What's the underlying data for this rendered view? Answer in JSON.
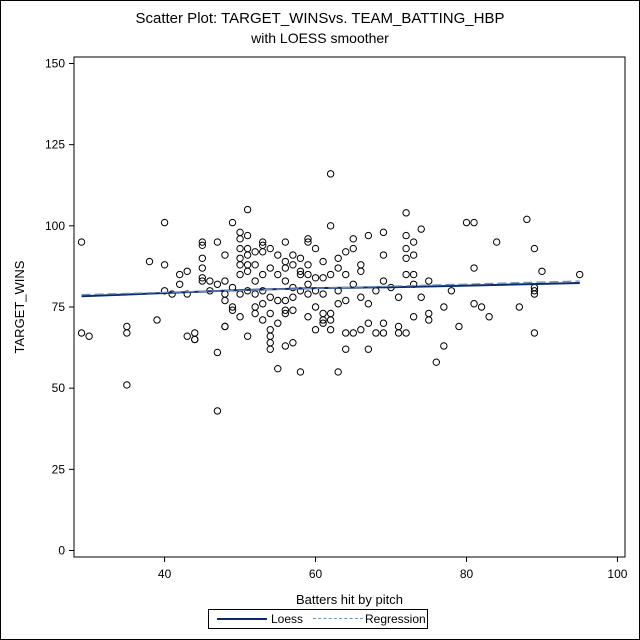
{
  "colors": {
    "loess": "#0b2a6b",
    "regression": "#6f8fb8",
    "marker": "#000000"
  },
  "chart_data": {
    "type": "scatter",
    "title": "Scatter Plot: TARGET_WINSvs. TEAM_BATTING_HBP",
    "subtitle": "with LOESS smoother",
    "xlabel": "Batters hit by pitch",
    "ylabel": "TARGET_WINS",
    "xlim": [
      28,
      101
    ],
    "ylim": [
      -2,
      152
    ],
    "xticks": [
      40,
      60,
      80,
      100
    ],
    "yticks": [
      0,
      25,
      50,
      75,
      100,
      125,
      150
    ],
    "grid": false,
    "legend_position": "bottom",
    "points": [
      [
        29,
        95
      ],
      [
        29,
        67
      ],
      [
        30,
        66
      ],
      [
        35,
        69
      ],
      [
        35,
        67
      ],
      [
        35,
        51
      ],
      [
        38,
        89
      ],
      [
        39,
        71
      ],
      [
        40,
        101
      ],
      [
        40,
        88
      ],
      [
        40,
        80
      ],
      [
        41,
        79
      ],
      [
        42,
        85
      ],
      [
        42,
        82
      ],
      [
        43,
        86
      ],
      [
        43,
        79
      ],
      [
        43,
        66
      ],
      [
        44,
        67
      ],
      [
        44,
        65
      ],
      [
        44,
        65
      ],
      [
        45,
        95
      ],
      [
        45,
        94
      ],
      [
        45,
        90
      ],
      [
        45,
        87
      ],
      [
        45,
        84
      ],
      [
        45,
        83
      ],
      [
        46,
        83
      ],
      [
        46,
        80
      ],
      [
        47,
        95
      ],
      [
        47,
        82
      ],
      [
        47,
        61
      ],
      [
        47,
        43
      ],
      [
        48,
        91
      ],
      [
        48,
        83
      ],
      [
        48,
        79
      ],
      [
        48,
        77
      ],
      [
        48,
        69
      ],
      [
        48,
        69
      ],
      [
        49,
        101
      ],
      [
        49,
        81
      ],
      [
        49,
        75
      ],
      [
        49,
        74
      ],
      [
        50,
        98
      ],
      [
        50,
        96
      ],
      [
        50,
        93
      ],
      [
        50,
        90
      ],
      [
        50,
        88
      ],
      [
        50,
        85
      ],
      [
        50,
        79
      ],
      [
        50,
        72
      ],
      [
        51,
        105
      ],
      [
        51,
        97
      ],
      [
        51,
        93
      ],
      [
        51,
        91
      ],
      [
        51,
        88
      ],
      [
        51,
        86
      ],
      [
        51,
        80
      ],
      [
        51,
        66
      ],
      [
        52,
        92
      ],
      [
        52,
        88
      ],
      [
        52,
        83
      ],
      [
        52,
        79
      ],
      [
        52,
        75
      ],
      [
        52,
        73
      ],
      [
        53,
        95
      ],
      [
        53,
        94
      ],
      [
        53,
        92
      ],
      [
        53,
        85
      ],
      [
        53,
        80
      ],
      [
        53,
        76
      ],
      [
        53,
        71
      ],
      [
        54,
        93
      ],
      [
        54,
        87
      ],
      [
        54,
        78
      ],
      [
        54,
        73
      ],
      [
        54,
        68
      ],
      [
        54,
        66
      ],
      [
        54,
        64
      ],
      [
        54,
        62
      ],
      [
        55,
        91
      ],
      [
        55,
        85
      ],
      [
        55,
        77
      ],
      [
        55,
        70
      ],
      [
        55,
        56
      ],
      [
        56,
        95
      ],
      [
        56,
        89
      ],
      [
        56,
        87
      ],
      [
        56,
        83
      ],
      [
        56,
        77
      ],
      [
        56,
        74
      ],
      [
        56,
        73
      ],
      [
        56,
        63
      ],
      [
        57,
        91
      ],
      [
        57,
        88
      ],
      [
        57,
        81
      ],
      [
        57,
        78
      ],
      [
        57,
        74
      ],
      [
        57,
        64
      ],
      [
        58,
        90
      ],
      [
        58,
        86
      ],
      [
        58,
        85
      ],
      [
        58,
        80
      ],
      [
        58,
        55
      ],
      [
        59,
        96
      ],
      [
        59,
        95
      ],
      [
        59,
        88
      ],
      [
        59,
        85
      ],
      [
        59,
        82
      ],
      [
        59,
        79
      ],
      [
        59,
        72
      ],
      [
        60,
        93
      ],
      [
        60,
        84
      ],
      [
        60,
        80
      ],
      [
        60,
        75
      ],
      [
        60,
        68
      ],
      [
        61,
        89
      ],
      [
        61,
        84
      ],
      [
        61,
        79
      ],
      [
        61,
        73
      ],
      [
        61,
        71
      ],
      [
        61,
        70
      ],
      [
        62,
        116
      ],
      [
        62,
        100
      ],
      [
        62,
        85
      ],
      [
        62,
        73
      ],
      [
        62,
        71
      ],
      [
        62,
        68
      ],
      [
        63,
        90
      ],
      [
        63,
        87
      ],
      [
        63,
        80
      ],
      [
        63,
        76
      ],
      [
        63,
        55
      ],
      [
        64,
        92
      ],
      [
        64,
        85
      ],
      [
        64,
        77
      ],
      [
        64,
        67
      ],
      [
        64,
        62
      ],
      [
        65,
        96
      ],
      [
        65,
        93
      ],
      [
        65,
        82
      ],
      [
        65,
        67
      ],
      [
        66,
        88
      ],
      [
        66,
        86
      ],
      [
        66,
        78
      ],
      [
        66,
        68
      ],
      [
        67,
        97
      ],
      [
        67,
        76
      ],
      [
        67,
        70
      ],
      [
        67,
        62
      ],
      [
        68,
        80
      ],
      [
        68,
        67
      ],
      [
        69,
        98
      ],
      [
        69,
        91
      ],
      [
        69,
        83
      ],
      [
        69,
        70
      ],
      [
        69,
        67
      ],
      [
        70,
        81
      ],
      [
        71,
        78
      ],
      [
        71,
        69
      ],
      [
        71,
        67
      ],
      [
        72,
        104
      ],
      [
        72,
        97
      ],
      [
        72,
        93
      ],
      [
        72,
        90
      ],
      [
        72,
        85
      ],
      [
        72,
        67
      ],
      [
        73,
        95
      ],
      [
        73,
        91
      ],
      [
        73,
        85
      ],
      [
        73,
        82
      ],
      [
        73,
        72
      ],
      [
        74,
        99
      ],
      [
        74,
        78
      ],
      [
        75,
        83
      ],
      [
        75,
        73
      ],
      [
        75,
        71
      ],
      [
        76,
        58
      ],
      [
        77,
        75
      ],
      [
        77,
        63
      ],
      [
        78,
        80
      ],
      [
        79,
        69
      ],
      [
        80,
        101
      ],
      [
        81,
        101
      ],
      [
        81,
        87
      ],
      [
        81,
        76
      ],
      [
        82,
        75
      ],
      [
        83,
        72
      ],
      [
        84,
        95
      ],
      [
        87,
        75
      ],
      [
        88,
        102
      ],
      [
        89,
        93
      ],
      [
        89,
        81
      ],
      [
        89,
        80
      ],
      [
        89,
        79
      ],
      [
        89,
        67
      ],
      [
        90,
        86
      ],
      [
        95,
        85
      ]
    ],
    "series": [
      {
        "name": "Loess",
        "style": "solid",
        "x": [
          29,
          40,
          50,
          60,
          70,
          80,
          95
        ],
        "y": [
          78.3,
          79.3,
          80.2,
          80.8,
          81.1,
          81.6,
          82.4
        ]
      },
      {
        "name": "Regression",
        "style": "dashed",
        "x": [
          29,
          95
        ],
        "y": [
          78.8,
          83.0
        ]
      }
    ]
  }
}
